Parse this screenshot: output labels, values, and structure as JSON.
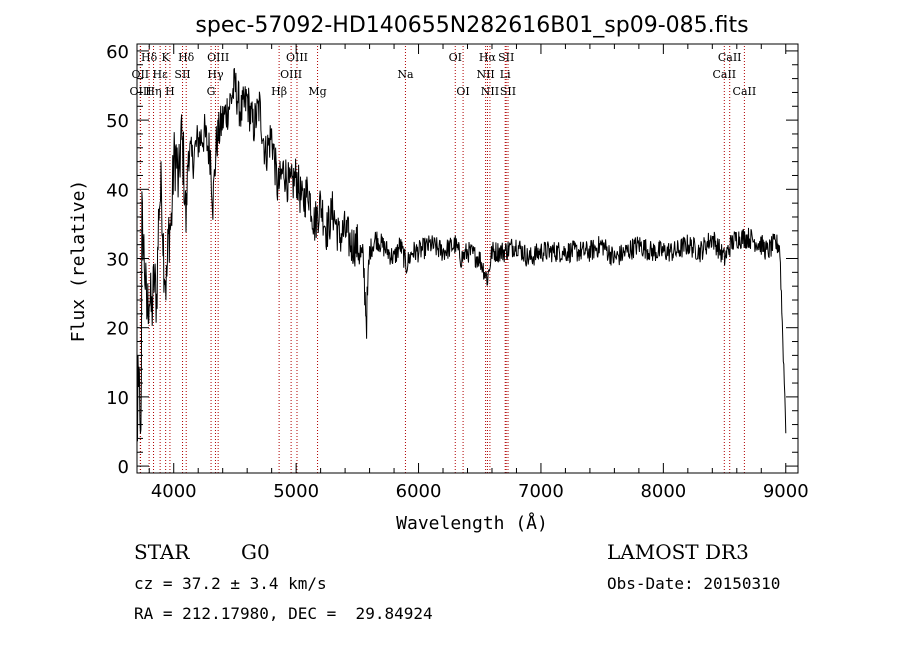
{
  "chart_data": {
    "type": "line",
    "title": "spec-57092-HD140655N282616B01_sp09-085.fits",
    "xlabel": "Wavelength (Å)",
    "ylabel": "Flux (relative)",
    "xlim": [
      3700,
      9100
    ],
    "ylim": [
      -1,
      61
    ],
    "xticks": [
      4000,
      5000,
      6000,
      7000,
      8000,
      9000
    ],
    "yticks": [
      0,
      10,
      20,
      30,
      40,
      50,
      60
    ],
    "grid": false,
    "line_color": "#000000",
    "marker_color": "#b00000",
    "spectral_lines": [
      {
        "label": "Hδ",
        "x": 3799,
        "row": 1
      },
      {
        "label": "OII",
        "x": 3727,
        "row": 2
      },
      {
        "label": "OIII",
        "x": 3729,
        "row": 3
      },
      {
        "label": "Hε",
        "x": 3889,
        "row": 2
      },
      {
        "label": "Hη",
        "x": 3835,
        "row": 3
      },
      {
        "label": "K",
        "x": 3934,
        "row": 1
      },
      {
        "label": "H",
        "x": 3969,
        "row": 3
      },
      {
        "label": "SII",
        "x": 4072,
        "row": 2
      },
      {
        "label": "Hδ",
        "x": 4102,
        "row": 1
      },
      {
        "label": "OIII",
        "x": 4363,
        "row": 1
      },
      {
        "label": "Hγ",
        "x": 4341,
        "row": 2
      },
      {
        "label": "G",
        "x": 4305,
        "row": 3
      },
      {
        "label": "Hβ",
        "x": 4861,
        "row": 3
      },
      {
        "label": "OIII",
        "x": 5007,
        "row": 1
      },
      {
        "label": "OIII",
        "x": 4959,
        "row": 2
      },
      {
        "label": "Mg",
        "x": 5175,
        "row": 3
      },
      {
        "label": "Na",
        "x": 5893,
        "row": 2
      },
      {
        "label": "OI",
        "x": 6300,
        "row": 1
      },
      {
        "label": "OI",
        "x": 6364,
        "row": 3
      },
      {
        "label": "Hα",
        "x": 6563,
        "row": 1
      },
      {
        "label": "NII",
        "x": 6548,
        "row": 2
      },
      {
        "label": "NII",
        "x": 6583,
        "row": 3
      },
      {
        "label": "SII",
        "x": 6716,
        "row": 1
      },
      {
        "label": "Li",
        "x": 6708,
        "row": 2
      },
      {
        "label": "SII",
        "x": 6731,
        "row": 3
      },
      {
        "label": "CaII",
        "x": 8542,
        "row": 1
      },
      {
        "label": "CaII",
        "x": 8498,
        "row": 2
      },
      {
        "label": "CaII",
        "x": 8662,
        "row": 3
      }
    ],
    "series": [
      {
        "x": [
          3700,
          3720,
          3740,
          3760,
          3780,
          3800,
          3820,
          3840,
          3860,
          3880,
          3900,
          3920,
          3940,
          3960,
          3980,
          4000,
          4020,
          4040,
          4060,
          4080,
          4100,
          4120,
          4150,
          4180,
          4200,
          4250,
          4300,
          4320,
          4350,
          4400,
          4450,
          4500,
          4550,
          4600,
          4650,
          4700,
          4750,
          4800,
          4850,
          4900,
          4950,
          5000,
          5050,
          5100,
          5150,
          5200,
          5250,
          5300,
          5350,
          5400,
          5450,
          5500,
          5550,
          5575,
          5600,
          5650,
          5700,
          5750,
          5800,
          5850,
          5900,
          5950,
          6000,
          6100,
          6200,
          6300,
          6350,
          6400,
          6500,
          6563,
          6600,
          6700,
          6800,
          6900,
          7000,
          7100,
          7200,
          7300,
          7400,
          7500,
          7600,
          7700,
          7800,
          7900,
          8000,
          8100,
          8200,
          8300,
          8400,
          8500,
          8550,
          8600,
          8700,
          8800,
          8850,
          8900,
          8950,
          9000
        ],
        "y": [
          2,
          20,
          36,
          30,
          22,
          25,
          22,
          27,
          24,
          38,
          40,
          30,
          26,
          34,
          35,
          44,
          45,
          40,
          48,
          44,
          35,
          46,
          44,
          46,
          47,
          48,
          45,
          38,
          47,
          50,
          52,
          55,
          51,
          53,
          49,
          52,
          45,
          48,
          40,
          43,
          40,
          42,
          38,
          40,
          35,
          38,
          34,
          37,
          33,
          34,
          32,
          32,
          29,
          21,
          31,
          33,
          32,
          31,
          30,
          32,
          29,
          31,
          31,
          32,
          31,
          32,
          30,
          31,
          30,
          27,
          31,
          31,
          32,
          30,
          31,
          31,
          31,
          31,
          31,
          32,
          30,
          31,
          32,
          31,
          31,
          31,
          32,
          31,
          33,
          30,
          32,
          33,
          33,
          32,
          31,
          32,
          32,
          6
        ]
      }
    ]
  },
  "info": {
    "object_type": "STAR",
    "subclass": "G0",
    "survey": "LAMOST DR3",
    "redshift": "cz = 37.2 ± 3.4 km/s",
    "obs_date": "Obs-Date: 20150310",
    "coords": "RA = 212.17980, DEC =  29.84924"
  }
}
